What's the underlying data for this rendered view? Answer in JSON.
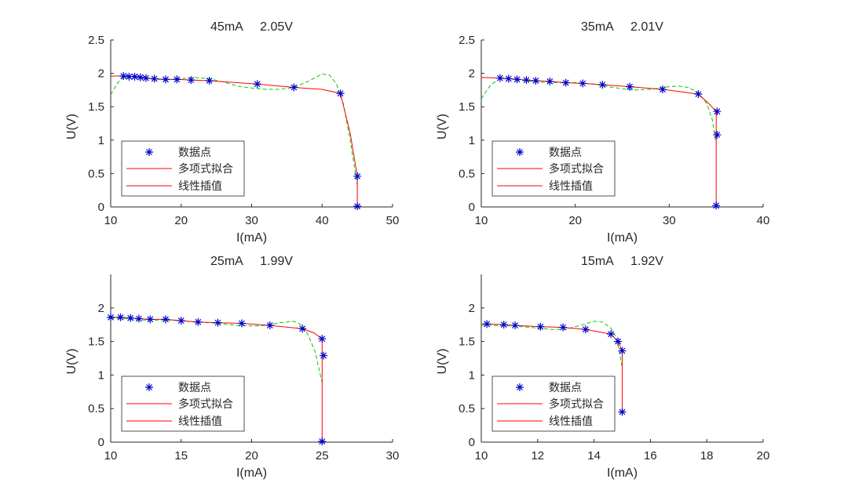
{
  "figure": {
    "legend_entries": [
      "数据点",
      "多项式拟合",
      "线性插值"
    ],
    "colors": {
      "points": "#0000cc",
      "fit": "#00cc00",
      "interp": "#ff0000",
      "axis": "#262626"
    }
  },
  "chart_data": [
    {
      "type": "line",
      "title": "45mA     2.05V",
      "xlabel": "I(mA)",
      "ylabel": "U(V)",
      "xlim": [
        10,
        50
      ],
      "ylim": [
        0,
        2.5
      ],
      "xticks": [
        10,
        20,
        30,
        40,
        50
      ],
      "yticks": [
        0,
        0.5,
        1,
        1.5,
        2,
        2.5
      ],
      "legend_position": "bottom-left",
      "series": [
        {
          "name": "数据点",
          "x": [
            11.8,
            12.6,
            13.4,
            14.2,
            15.0,
            16.2,
            17.8,
            19.4,
            21.4,
            24.0,
            30.8,
            36.0,
            42.6,
            45.0,
            45.0
          ],
          "y": [
            1.96,
            1.95,
            1.95,
            1.94,
            1.93,
            1.92,
            1.91,
            1.91,
            1.9,
            1.89,
            1.84,
            1.79,
            1.7,
            0.46,
            0.01
          ]
        },
        {
          "name": "多项式拟合",
          "x": [
            10,
            11,
            12,
            14,
            16,
            18,
            20,
            22,
            24,
            26,
            28,
            30,
            32,
            34,
            36,
            38,
            40,
            41,
            42,
            43,
            44,
            45
          ],
          "y": [
            1.68,
            1.86,
            1.96,
            1.95,
            1.91,
            1.9,
            1.92,
            1.94,
            1.92,
            1.87,
            1.81,
            1.78,
            1.76,
            1.76,
            1.79,
            1.88,
            1.99,
            1.98,
            1.85,
            1.55,
            1.0,
            0.32
          ]
        },
        {
          "name": "线性插值",
          "x": [
            10,
            11.8,
            12.6,
            13.4,
            14.2,
            15.0,
            16.2,
            17.8,
            19.4,
            21.4,
            24.0,
            30.8,
            36.0,
            40.0,
            42.6,
            44.0,
            45.0,
            45.0
          ],
          "y": [
            1.96,
            1.96,
            1.95,
            1.95,
            1.94,
            1.93,
            1.92,
            1.91,
            1.91,
            1.9,
            1.89,
            1.84,
            1.79,
            1.76,
            1.7,
            1.1,
            0.46,
            0.01
          ]
        }
      ]
    },
    {
      "type": "line",
      "title": "35mA     2.01V",
      "xlabel": "I(mA)",
      "ylabel": "U(V)",
      "xlim": [
        10,
        40
      ],
      "ylim": [
        0,
        2.5
      ],
      "xticks": [
        10,
        20,
        30,
        40
      ],
      "yticks": [
        0,
        0.5,
        1,
        1.5,
        2,
        2.5
      ],
      "legend_position": "bottom-left",
      "series": [
        {
          "name": "数据点",
          "x": [
            12.0,
            12.9,
            13.8,
            14.8,
            15.8,
            17.3,
            19.0,
            20.8,
            22.9,
            25.8,
            29.3,
            33.1,
            35.1,
            35.1,
            35.0
          ],
          "y": [
            1.93,
            1.92,
            1.91,
            1.9,
            1.89,
            1.88,
            1.86,
            1.85,
            1.83,
            1.8,
            1.76,
            1.69,
            1.43,
            1.08,
            0.02
          ]
        },
        {
          "name": "多项式拟合",
          "x": [
            10,
            11,
            12,
            13,
            14,
            16,
            18,
            20,
            22,
            24,
            26,
            28,
            30,
            31,
            32,
            33,
            34,
            34.6,
            35.0
          ],
          "y": [
            1.62,
            1.83,
            1.92,
            1.92,
            1.9,
            1.87,
            1.86,
            1.86,
            1.84,
            1.79,
            1.75,
            1.76,
            1.8,
            1.81,
            1.79,
            1.72,
            1.55,
            1.3,
            0.95
          ]
        },
        {
          "name": "线性插值",
          "x": [
            10,
            12.0,
            12.9,
            13.8,
            14.8,
            15.8,
            17.3,
            19.0,
            20.8,
            22.9,
            25.8,
            29.3,
            33.1,
            34.2,
            35.0,
            35.0,
            35.0
          ],
          "y": [
            1.94,
            1.93,
            1.92,
            1.91,
            1.9,
            1.89,
            1.88,
            1.86,
            1.85,
            1.83,
            1.8,
            1.76,
            1.69,
            1.55,
            1.43,
            1.08,
            0.02
          ]
        }
      ]
    },
    {
      "type": "line",
      "title": "25mA     1.99V",
      "xlabel": "I(mA)",
      "ylabel": "U(V)",
      "xlim": [
        10,
        30
      ],
      "ylim": [
        0,
        2.5
      ],
      "xticks": [
        10,
        15,
        20,
        25,
        30
      ],
      "yticks": [
        0,
        0.5,
        1,
        1.5,
        2
      ],
      "legend_position": "bottom-left",
      "series": [
        {
          "name": "数据点",
          "x": [
            10.0,
            10.7,
            11.4,
            12.0,
            12.8,
            13.9,
            15.0,
            16.2,
            17.6,
            19.3,
            21.3,
            23.6,
            25.0,
            25.1,
            25.0
          ],
          "y": [
            1.86,
            1.86,
            1.85,
            1.84,
            1.83,
            1.83,
            1.81,
            1.79,
            1.78,
            1.77,
            1.74,
            1.69,
            1.54,
            1.29,
            0.01
          ]
        },
        {
          "name": "多项式拟合",
          "x": [
            10,
            11,
            12,
            13,
            14,
            15,
            16,
            17,
            18,
            19,
            20,
            21,
            22,
            23,
            23.6,
            24,
            24.5,
            25.0
          ],
          "y": [
            1.85,
            1.84,
            1.82,
            1.82,
            1.82,
            1.81,
            1.79,
            1.78,
            1.76,
            1.74,
            1.73,
            1.74,
            1.78,
            1.8,
            1.74,
            1.6,
            1.35,
            0.88
          ]
        },
        {
          "name": "线性插值",
          "x": [
            10.0,
            10.7,
            11.4,
            12.0,
            12.8,
            13.9,
            15.0,
            16.2,
            17.6,
            19.3,
            21.3,
            23.6,
            24.4,
            25.0,
            25.0,
            25.0
          ],
          "y": [
            1.86,
            1.86,
            1.85,
            1.84,
            1.83,
            1.83,
            1.81,
            1.79,
            1.78,
            1.77,
            1.74,
            1.69,
            1.63,
            1.54,
            1.29,
            0.01
          ]
        }
      ]
    },
    {
      "type": "line",
      "title": "15mA     1.92V",
      "xlabel": "I(mA)",
      "ylabel": "U(V)",
      "xlim": [
        10,
        20
      ],
      "ylim": [
        0,
        2.5
      ],
      "xticks": [
        10,
        12,
        14,
        16,
        18,
        20
      ],
      "yticks": [
        0,
        0.5,
        1,
        1.5,
        2
      ],
      "legend_position": "bottom-left",
      "series": [
        {
          "name": "数据点",
          "x": [
            10.2,
            10.8,
            11.2,
            12.1,
            12.9,
            13.7,
            14.6,
            14.85,
            15.0,
            15.0
          ],
          "y": [
            1.76,
            1.75,
            1.74,
            1.72,
            1.71,
            1.68,
            1.61,
            1.5,
            1.36,
            0.45
          ]
        },
        {
          "name": "多项式拟合",
          "x": [
            10.0,
            10.5,
            11.0,
            11.5,
            12.0,
            12.5,
            13.0,
            13.5,
            14.0,
            14.3,
            14.6,
            14.8,
            15.0
          ],
          "y": [
            1.74,
            1.74,
            1.73,
            1.72,
            1.7,
            1.68,
            1.68,
            1.74,
            1.8,
            1.79,
            1.7,
            1.55,
            1.12
          ]
        },
        {
          "name": "线性插值",
          "x": [
            10.0,
            10.2,
            10.8,
            11.2,
            12.1,
            12.9,
            13.7,
            14.6,
            14.85,
            15.0,
            15.0
          ],
          "y": [
            1.76,
            1.76,
            1.75,
            1.74,
            1.72,
            1.71,
            1.68,
            1.61,
            1.5,
            1.36,
            0.45
          ]
        }
      ]
    }
  ]
}
